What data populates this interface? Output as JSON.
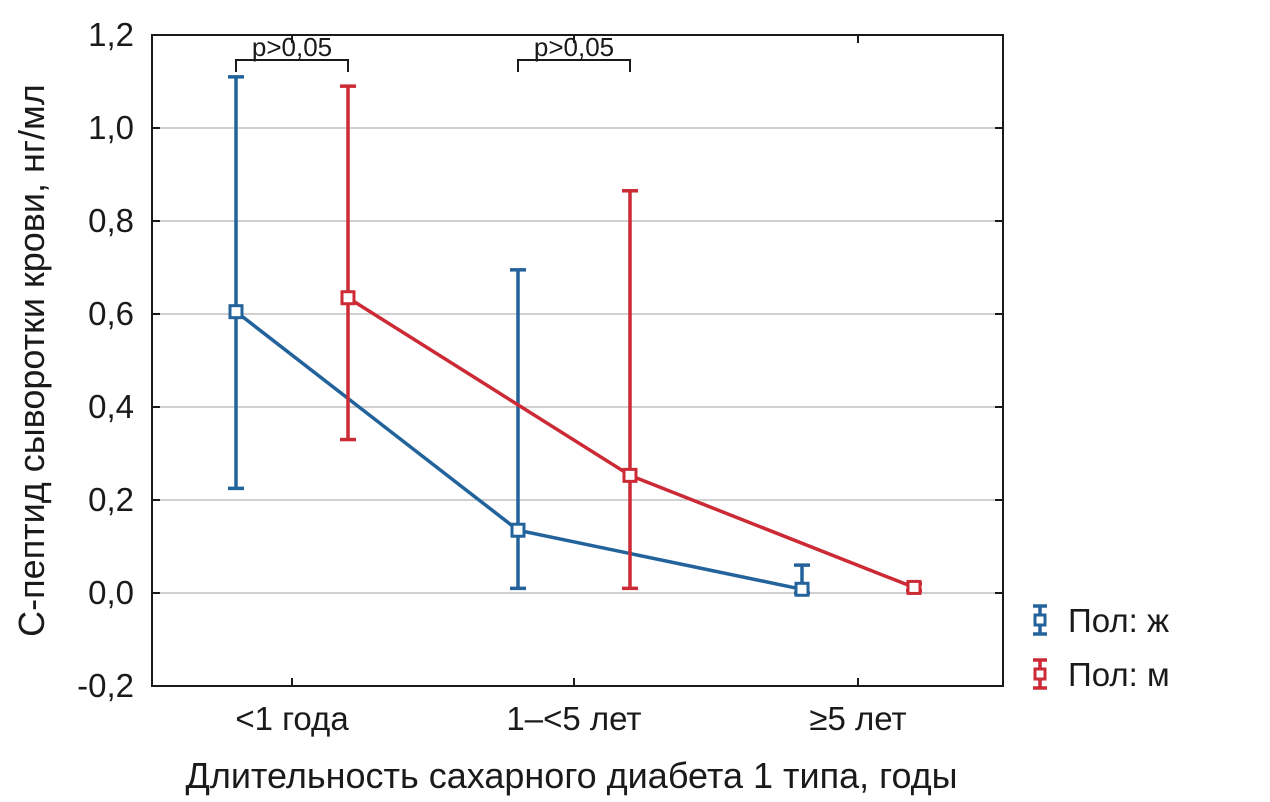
{
  "chart_data": {
    "type": "line",
    "title": "",
    "xlabel": "Длительность сахарного диабета 1 типа, годы",
    "ylabel": "С-пептид сыворотки крови, нг/мл",
    "categories": [
      "<1 года",
      "1–<5 лет",
      "≥5 лет"
    ],
    "ylim": [
      -0.2,
      1.2
    ],
    "yticks": [
      -0.2,
      0.0,
      0.2,
      0.4,
      0.6,
      0.8,
      1.0,
      1.2
    ],
    "ytick_labels": [
      "-0,2",
      "0,0",
      "0,2",
      "0,4",
      "0,6",
      "0,8",
      "1,0",
      "1,2"
    ],
    "grid": true,
    "legend_position": "right",
    "series": [
      {
        "name": "Пол: ж",
        "color": "#23639c",
        "values": [
          0.605,
          0.135,
          0.008
        ],
        "lower": [
          0.225,
          0.01,
          0.0
        ],
        "upper": [
          1.11,
          0.695,
          0.06
        ]
      },
      {
        "name": "Пол: м",
        "color": "#cc2a35",
        "values": [
          0.635,
          0.253,
          0.012
        ],
        "lower": [
          0.33,
          0.01,
          0.005
        ],
        "upper": [
          1.09,
          0.865,
          0.02
        ]
      }
    ],
    "annotations": [
      {
        "category_index": 0,
        "text": "p>0,05"
      },
      {
        "category_index": 1,
        "text": "p>0,05"
      }
    ]
  }
}
